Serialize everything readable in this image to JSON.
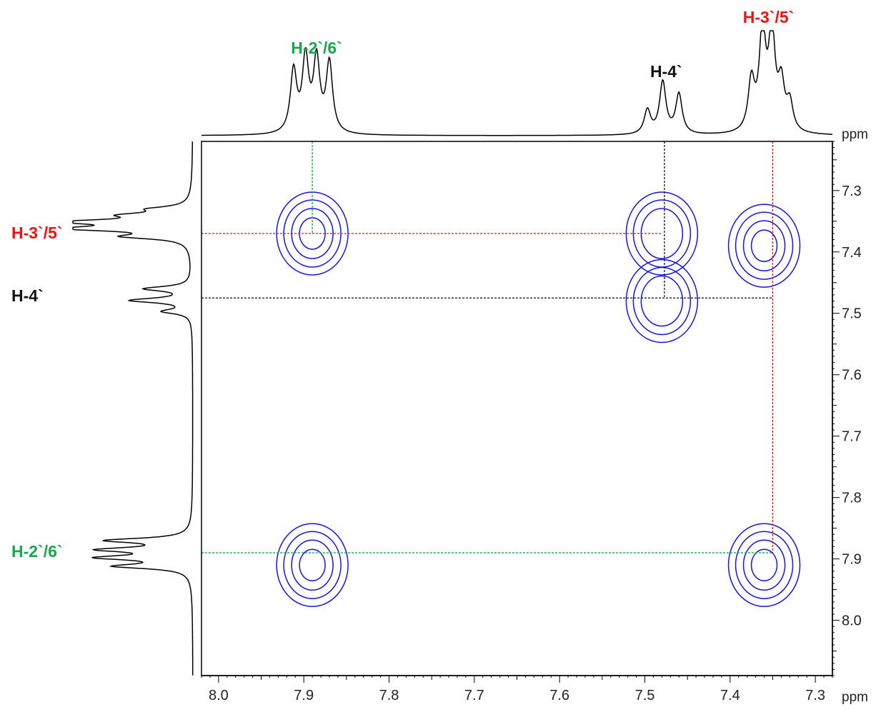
{
  "chart_data": {
    "type": "contour",
    "title": "",
    "xlabel": "ppm",
    "ylabel": "ppm",
    "x_axis": {
      "min": 7.28,
      "max": 8.02,
      "reversed": true,
      "ticks": [
        "8.0",
        "7.9",
        "7.8",
        "7.7",
        "7.6",
        "7.5",
        "7.4",
        "7.3"
      ]
    },
    "y_axis": {
      "min": 7.22,
      "max": 8.09,
      "reversed": true,
      "ticks": [
        "7.3",
        "7.4",
        "7.5",
        "7.6",
        "7.7",
        "7.8",
        "7.9",
        "8.0"
      ]
    },
    "grid": false,
    "colors": {
      "contour": "#1515e0",
      "h26": "#17a84b",
      "h35": "#ee1111",
      "h4": "#111111",
      "spectrum": "#000000"
    },
    "top_annotations": [
      {
        "text": "H-2`/6`",
        "ppm": 7.885,
        "color": "h26"
      },
      {
        "text": "H-4`",
        "ppm": 7.475,
        "color": "h4"
      },
      {
        "text": "H-3`/5`",
        "ppm": 7.355,
        "color": "h35"
      }
    ],
    "left_annotations": [
      {
        "text": "H-3`/5`",
        "ppm": 7.37,
        "color": "h35"
      },
      {
        "text": "H-4`",
        "ppm": 7.47,
        "color": "h4"
      },
      {
        "text": "H-2`/6`",
        "ppm": 7.88,
        "color": "h26"
      }
    ],
    "multiplets": [
      {
        "name": "H-2`/6`",
        "center": 7.89,
        "peaks": [
          {
            "ppm": 7.912,
            "h": 0.62
          },
          {
            "ppm": 7.898,
            "h": 0.73
          },
          {
            "ppm": 7.885,
            "h": 0.72
          },
          {
            "ppm": 7.87,
            "h": 0.7
          }
        ]
      },
      {
        "name": "H-4`",
        "center": 7.478,
        "peaks": [
          {
            "ppm": 7.497,
            "h": 0.24
          },
          {
            "ppm": 7.479,
            "h": 0.52
          },
          {
            "ppm": 7.46,
            "h": 0.4
          }
        ]
      },
      {
        "name": "H-3`/5`",
        "center": 7.355,
        "peaks": [
          {
            "ppm": 7.375,
            "h": 0.5
          },
          {
            "ppm": 7.362,
            "h": 1.0
          },
          {
            "ppm": 7.351,
            "h": 0.98
          },
          {
            "ppm": 7.34,
            "h": 0.45
          },
          {
            "ppm": 7.33,
            "h": 0.28
          }
        ]
      }
    ],
    "cross_peaks": [
      {
        "x": 7.89,
        "y": 7.37,
        "levels": 4
      },
      {
        "x": 7.48,
        "y": 7.37,
        "levels": 3
      },
      {
        "x": 7.48,
        "y": 7.48,
        "levels": 3
      },
      {
        "x": 7.36,
        "y": 7.39,
        "levels": 4
      },
      {
        "x": 7.89,
        "y": 7.91,
        "levels": 4
      },
      {
        "x": 7.36,
        "y": 7.91,
        "levels": 4
      }
    ],
    "guide_lines": [
      {
        "orientation": "vertical",
        "ppm": 7.89,
        "from": 7.22,
        "to": 7.37,
        "color": "h26"
      },
      {
        "orientation": "horizontal",
        "ppm": 7.37,
        "from": 8.02,
        "to": 7.48,
        "color": "h35"
      },
      {
        "orientation": "vertical",
        "ppm": 7.477,
        "from": 7.22,
        "to": 7.475,
        "color": "h4"
      },
      {
        "orientation": "horizontal",
        "ppm": 7.475,
        "from": 8.02,
        "to": 7.35,
        "color": "h4"
      },
      {
        "orientation": "vertical",
        "ppm": 7.35,
        "from": 7.22,
        "to": 7.89,
        "color": "h35"
      },
      {
        "orientation": "horizontal",
        "ppm": 7.89,
        "from": 8.02,
        "to": 7.35,
        "color": "h26"
      }
    ]
  }
}
